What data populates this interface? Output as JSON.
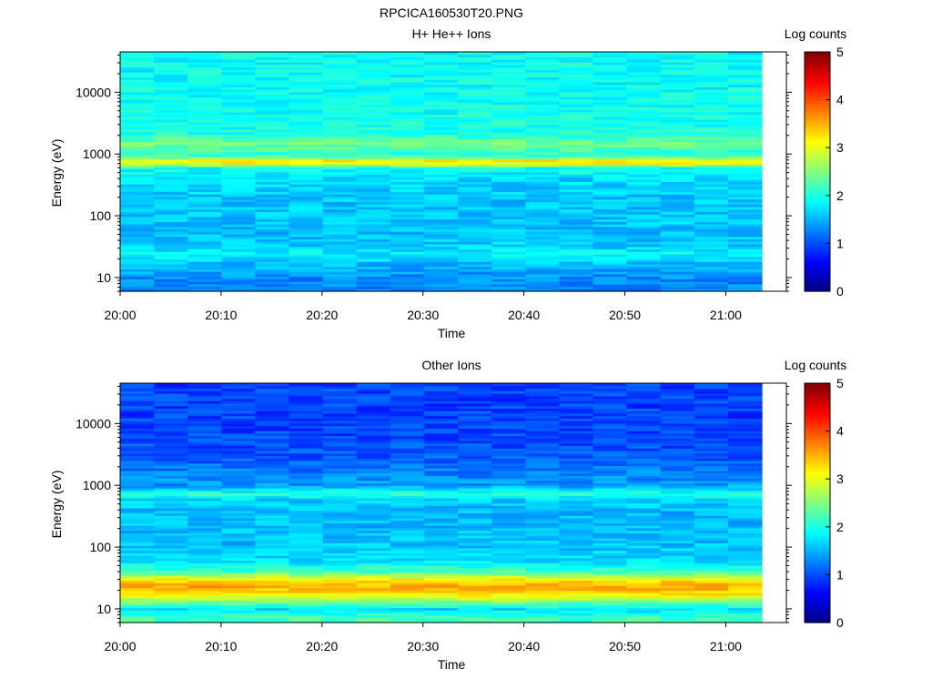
{
  "figure_title": "RPCICA160530T20.PNG",
  "colormap": [
    "#00007f",
    "#0000ff",
    "#007fff",
    "#00ffff",
    "#7fff7f",
    "#ffff00",
    "#ff7f00",
    "#ff0000",
    "#7f0000"
  ],
  "chart_data": [
    {
      "type": "heatmap",
      "title": "H+ He++ Ions",
      "xlabel": "Time",
      "ylabel": "Energy (eV)",
      "x_ticks": [
        "20:00",
        "20:10",
        "20:20",
        "20:30",
        "20:40",
        "20:50",
        "21:00"
      ],
      "xlim": [
        "20:00",
        "21:06"
      ],
      "y_scale": "log",
      "y_ticks": [
        "10",
        "100",
        "1000",
        "10000"
      ],
      "ylim": [
        6,
        45000
      ],
      "colorbar_label": "Log counts",
      "colorbar_range": [
        0,
        5
      ],
      "colorbar_ticks": [
        "0",
        "1",
        "2",
        "3",
        "4",
        "5"
      ],
      "n_time_bins": 19,
      "n_energy_bins": 96,
      "profile": [
        {
          "energy": 7,
          "log_counts": 1.3
        },
        {
          "energy": 10,
          "log_counts": 1.3
        },
        {
          "energy": 13,
          "log_counts": 1.45
        },
        {
          "energy": 18,
          "log_counts": 1.6
        },
        {
          "energy": 25,
          "log_counts": 1.85
        },
        {
          "energy": 32,
          "log_counts": 1.65
        },
        {
          "energy": 50,
          "log_counts": 1.55
        },
        {
          "energy": 100,
          "log_counts": 1.6
        },
        {
          "energy": 200,
          "log_counts": 1.6
        },
        {
          "energy": 400,
          "log_counts": 1.7
        },
        {
          "energy": 600,
          "log_counts": 1.95
        },
        {
          "energy": 700,
          "log_counts": 3.05
        },
        {
          "energy": 780,
          "log_counts": 3.25
        },
        {
          "energy": 880,
          "log_counts": 2.4
        },
        {
          "energy": 1000,
          "log_counts": 2.05
        },
        {
          "energy": 1500,
          "log_counts": 2.45
        },
        {
          "energy": 2200,
          "log_counts": 2.0
        },
        {
          "energy": 5000,
          "log_counts": 1.95
        },
        {
          "energy": 15000,
          "log_counts": 1.9
        },
        {
          "energy": 45000,
          "log_counts": 1.9
        }
      ]
    },
    {
      "type": "heatmap",
      "title": "Other Ions",
      "xlabel": "Time",
      "ylabel": "Energy (eV)",
      "x_ticks": [
        "20:00",
        "20:10",
        "20:20",
        "20:30",
        "20:40",
        "20:50",
        "21:00"
      ],
      "xlim": [
        "20:00",
        "21:06"
      ],
      "y_scale": "log",
      "y_ticks": [
        "10",
        "100",
        "1000",
        "10000"
      ],
      "ylim": [
        6,
        45000
      ],
      "colorbar_label": "Log counts",
      "colorbar_range": [
        0,
        5
      ],
      "colorbar_ticks": [
        "0",
        "1",
        "2",
        "3",
        "4",
        "5"
      ],
      "n_time_bins": 19,
      "n_energy_bins": 96,
      "profile": [
        {
          "energy": 7,
          "log_counts": 2.2
        },
        {
          "energy": 10,
          "log_counts": 1.75
        },
        {
          "energy": 13,
          "log_counts": 2.45
        },
        {
          "energy": 16,
          "log_counts": 3.05
        },
        {
          "energy": 19,
          "log_counts": 3.3
        },
        {
          "energy": 23,
          "log_counts": 3.55
        },
        {
          "energy": 28,
          "log_counts": 3.35
        },
        {
          "energy": 34,
          "log_counts": 2.8
        },
        {
          "energy": 40,
          "log_counts": 2.2
        },
        {
          "energy": 60,
          "log_counts": 1.75
        },
        {
          "energy": 100,
          "log_counts": 1.6
        },
        {
          "energy": 200,
          "log_counts": 1.55
        },
        {
          "energy": 400,
          "log_counts": 1.55
        },
        {
          "energy": 600,
          "log_counts": 1.65
        },
        {
          "energy": 720,
          "log_counts": 2.1
        },
        {
          "energy": 820,
          "log_counts": 1.8
        },
        {
          "energy": 1000,
          "log_counts": 1.4
        },
        {
          "energy": 3000,
          "log_counts": 1.05
        },
        {
          "energy": 10000,
          "log_counts": 0.95
        },
        {
          "energy": 45000,
          "log_counts": 0.95
        }
      ]
    }
  ]
}
